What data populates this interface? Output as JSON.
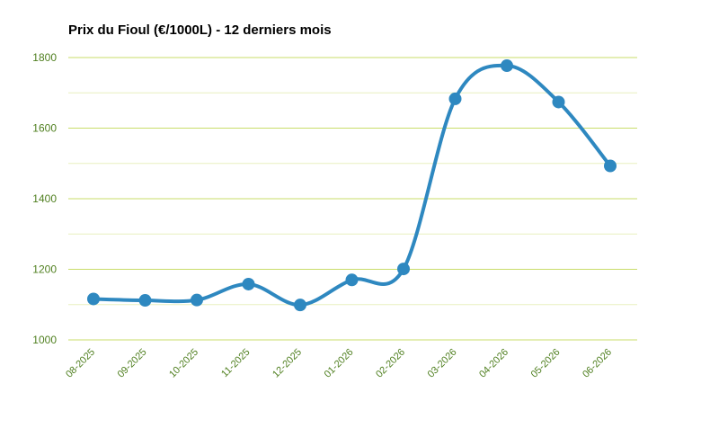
{
  "chart_data": {
    "type": "line",
    "title": "Prix du Fioul (€/1000L) - 12 derniers mois",
    "xlabel": "",
    "ylabel": "",
    "categories": [
      "08-2025",
      "09-2025",
      "10-2025",
      "11-2025",
      "12-2025",
      "01-2026",
      "02-2026",
      "03-2026",
      "04-2026",
      "05-2026",
      "06-2026"
    ],
    "series": [
      {
        "values": [
          1116,
          1112,
          1113,
          1158,
          1099,
          1170,
          1201,
          1683,
          1777,
          1674,
          1493
        ]
      }
    ],
    "ylim": [
      1000,
      1800
    ],
    "yticks": [
      "1000",
      "1200",
      "1400",
      "1600",
      "1800"
    ],
    "grid": true,
    "legend": "none",
    "colors": {
      "line": "#2e88c0",
      "grid_major": "#c9dd6a",
      "grid_minor": "#e8f0bf",
      "tick_label": "#4f7f1f"
    }
  }
}
